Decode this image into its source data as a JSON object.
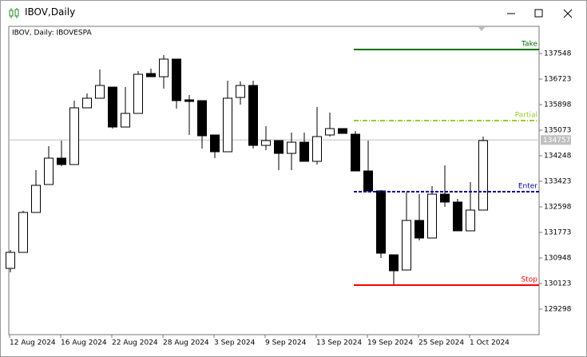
{
  "window": {
    "title": "IBOV,Daily"
  },
  "chart_data": {
    "type": "candlestick",
    "label": "IBOV, Daily:  IBOVESPA",
    "categories": [
      "12 Aug 2024",
      null,
      null,
      null,
      "16 Aug 2024",
      null,
      null,
      null,
      "22 Aug 2024",
      null,
      null,
      null,
      "28 Aug 2024",
      null,
      null,
      null,
      "3 Sep 2024",
      null,
      null,
      null,
      "9 Sep 2024",
      null,
      null,
      null,
      "13 Sep 2024",
      null,
      null,
      null,
      "19 Sep 2024",
      null,
      null,
      null,
      "25 Sep 2024",
      null,
      null,
      null,
      "1 Oct 2024",
      null
    ],
    "open": [
      130613,
      131129,
      132418,
      133320,
      134171,
      133965,
      135795,
      136105,
      136465,
      135176,
      135615,
      136903,
      136800,
      137368,
      136053,
      136027,
      134919,
      134377,
      136130,
      136517,
      134583,
      134738,
      134325,
      134686,
      134068,
      134919,
      135125,
      134944,
      133758,
      133114,
      131051,
      130561,
      132160,
      131593,
      133010,
      132753,
      131825,
      132495
    ],
    "high": [
      131206,
      132470,
      133784,
      134557,
      134738,
      136027,
      136259,
      137032,
      136465,
      136465,
      136981,
      137058,
      137497,
      137368,
      136207,
      136027,
      134919,
      136671,
      136646,
      136671,
      135202,
      134738,
      134996,
      134996,
      135821,
      135640,
      135125,
      135047,
      134738,
      133140,
      131051,
      133062,
      133010,
      133269,
      133939,
      132856,
      133398,
      134867
    ],
    "low": [
      130484,
      131129,
      132418,
      133320,
      133913,
      133965,
      135795,
      136105,
      135125,
      135176,
      135615,
      136800,
      136414,
      135769,
      134919,
      134480,
      134171,
      134377,
      135898,
      134480,
      134428,
      133784,
      133784,
      134068,
      133965,
      134867,
      134970,
      133758,
      133062,
      130948,
      130098,
      130561,
      131515,
      131593,
      132598,
      131825,
      131825,
      132495
    ],
    "close": [
      131129,
      132418,
      133294,
      134171,
      133965,
      135795,
      136105,
      136517,
      135176,
      135615,
      136878,
      136800,
      137368,
      136027,
      136001,
      134893,
      134377,
      136105,
      136517,
      134583,
      134738,
      134325,
      134686,
      134068,
      134867,
      135125,
      134970,
      133758,
      133114,
      131103,
      130535,
      132160,
      131593,
      133010,
      132753,
      131825,
      132495,
      134738
    ],
    "up_color": "#ffffff",
    "down_color": "#000000",
    "ylim": [
      128474,
      138425
    ],
    "yticks": [
      129298,
      130123,
      130948,
      131773,
      132598,
      133423,
      134248,
      135073,
      135898,
      136723,
      137548
    ],
    "levels": [
      {
        "name": "Take",
        "value": 137677,
        "color": "#007000",
        "style": "solid"
      },
      {
        "name": "Partial",
        "value": 135382,
        "color": "#9acd32",
        "style": "dashdot"
      },
      {
        "name": "Enter",
        "value": 133088,
        "color": "#00008b",
        "style": "dashed"
      },
      {
        "name": "Stop",
        "value": 130072,
        "color": "#ff0000",
        "style": "solid"
      }
    ],
    "last_price": 134757
  }
}
